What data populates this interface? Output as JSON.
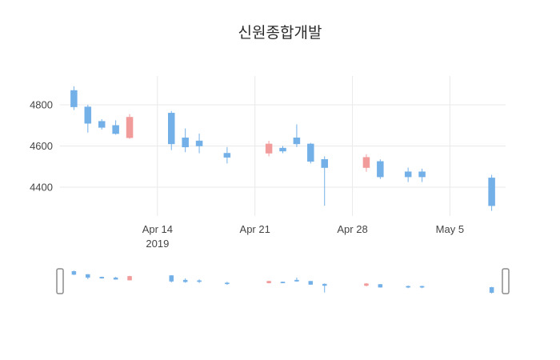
{
  "title": "신원종합개발",
  "colors": {
    "increasing": "#f29b9b",
    "decreasing": "#73b0e8",
    "grid": "#e9e9e9",
    "tick_text": "#444444",
    "title_text": "#2b2b2b",
    "slider_handle_border": "#8c8c8c",
    "background": "#ffffff"
  },
  "chart_data": {
    "type": "candlestick",
    "title": "신원종합개발",
    "xlabel": "",
    "ylabel": "",
    "x_range": [
      "2019-04-07",
      "2019-05-09"
    ],
    "ylim": [
      4260,
      4940
    ],
    "y_ticks": [
      4400,
      4600,
      4800
    ],
    "x_ticks": [
      {
        "date": "2019-04-14",
        "label": "Apr 14",
        "sub": "2019"
      },
      {
        "date": "2019-04-21",
        "label": "Apr 21"
      },
      {
        "date": "2019-04-28",
        "label": "Apr 28"
      },
      {
        "date": "2019-05-05",
        "label": "May 5"
      }
    ],
    "grid": true,
    "legend": false,
    "rangeslider": true,
    "series": [
      {
        "date": "2019-04-08",
        "open": 4870,
        "high": 4890,
        "low": 4775,
        "close": 4790
      },
      {
        "date": "2019-04-09",
        "open": 4790,
        "high": 4800,
        "low": 4665,
        "close": 4710
      },
      {
        "date": "2019-04-10",
        "open": 4720,
        "high": 4730,
        "low": 4680,
        "close": 4690
      },
      {
        "date": "2019-04-11",
        "open": 4700,
        "high": 4725,
        "low": 4655,
        "close": 4660
      },
      {
        "date": "2019-04-12",
        "open": 4640,
        "high": 4755,
        "low": 4635,
        "close": 4740
      },
      {
        "date": "2019-04-15",
        "open": 4760,
        "high": 4770,
        "low": 4580,
        "close": 4610
      },
      {
        "date": "2019-04-16",
        "open": 4640,
        "high": 4685,
        "low": 4570,
        "close": 4595
      },
      {
        "date": "2019-04-17",
        "open": 4625,
        "high": 4660,
        "low": 4565,
        "close": 4600
      },
      {
        "date": "2019-04-19",
        "open": 4565,
        "high": 4595,
        "low": 4515,
        "close": 4545
      },
      {
        "date": "2019-04-22",
        "open": 4565,
        "high": 4625,
        "low": 4550,
        "close": 4610
      },
      {
        "date": "2019-04-23",
        "open": 4590,
        "high": 4600,
        "low": 4565,
        "close": 4575
      },
      {
        "date": "2019-04-24",
        "open": 4640,
        "high": 4705,
        "low": 4595,
        "close": 4610
      },
      {
        "date": "2019-04-25",
        "open": 4610,
        "high": 4615,
        "low": 4515,
        "close": 4525
      },
      {
        "date": "2019-04-26",
        "open": 4535,
        "high": 4550,
        "low": 4310,
        "close": 4495
      },
      {
        "date": "2019-04-29",
        "open": 4495,
        "high": 4560,
        "low": 4475,
        "close": 4545
      },
      {
        "date": "2019-04-30",
        "open": 4525,
        "high": 4535,
        "low": 4440,
        "close": 4450
      },
      {
        "date": "2019-05-02",
        "open": 4475,
        "high": 4495,
        "low": 4425,
        "close": 4450
      },
      {
        "date": "2019-05-03",
        "open": 4475,
        "high": 4490,
        "low": 4425,
        "close": 4450
      },
      {
        "date": "2019-05-08",
        "open": 4445,
        "high": 4460,
        "low": 4285,
        "close": 4310
      }
    ]
  }
}
